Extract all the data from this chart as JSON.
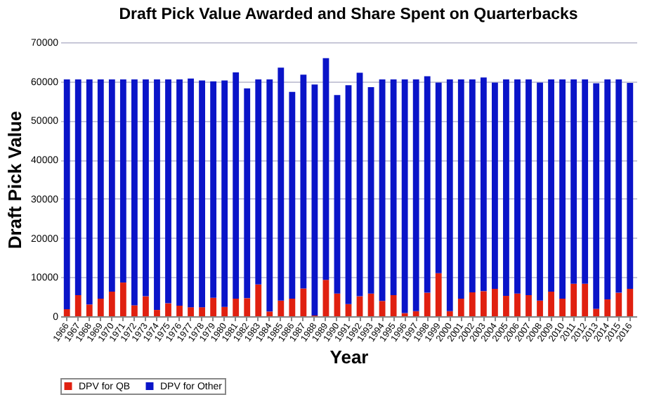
{
  "chart_data": {
    "type": "bar",
    "stacked": true,
    "title": "Draft Pick Value Awarded and Share Spent on Quarterbacks",
    "xlabel": "Year",
    "ylabel": "Draft Pick Value",
    "categories": [
      "1966",
      "1967",
      "1968",
      "1969",
      "1970",
      "1971",
      "1972",
      "1973",
      "1974",
      "1975",
      "1976",
      "1977",
      "1978",
      "1979",
      "1980",
      "1981",
      "1982",
      "1983",
      "1984",
      "1985",
      "1986",
      "1987",
      "1988",
      "1989",
      "1990",
      "1991",
      "1992",
      "1993",
      "1994",
      "1995",
      "1996",
      "1997",
      "1998",
      "1999",
      "2000",
      "2001",
      "2002",
      "2003",
      "2004",
      "2005",
      "2006",
      "2007",
      "2008",
      "2009",
      "2010",
      "2011",
      "2012",
      "2013",
      "2014",
      "2015",
      "2016"
    ],
    "series": [
      {
        "name": "DPV for QB",
        "color": "#e02010",
        "values": [
          1800,
          5400,
          3000,
          4500,
          6300,
          8600,
          2800,
          5100,
          1600,
          3300,
          2700,
          2300,
          2300,
          4700,
          2400,
          4500,
          4600,
          8100,
          1200,
          4000,
          4500,
          7100,
          200,
          9300,
          5800,
          3100,
          5100,
          5800,
          3900,
          5400,
          800,
          1300,
          6000,
          11000,
          1300,
          4500,
          6100,
          6400,
          7000,
          5200,
          5800,
          5400,
          4000,
          6300,
          4500,
          8300,
          8300,
          1900,
          4300,
          6000,
          7000
        ]
      },
      {
        "name": "DPV for Other",
        "color": "#0a14c8",
        "values": [
          58700,
          55100,
          57500,
          56000,
          54200,
          51900,
          57700,
          55400,
          58900,
          57200,
          57800,
          58400,
          57900,
          55300,
          57800,
          57800,
          53600,
          52400,
          59300,
          59500,
          52800,
          54600,
          59000,
          56600,
          50700,
          55900,
          57100,
          52700,
          56600,
          55100,
          59700,
          59200,
          55300,
          48700,
          59200,
          56000,
          54400,
          54600,
          52700,
          55300,
          54700,
          55100,
          55700,
          54200,
          56000,
          52200,
          52200,
          57600,
          56200,
          54500,
          52600
        ]
      }
    ],
    "ylim": [
      0,
      70000
    ],
    "yticks": [
      0,
      10000,
      20000,
      30000,
      40000,
      50000,
      60000,
      70000
    ],
    "grid": "y",
    "legend": "bottom"
  }
}
